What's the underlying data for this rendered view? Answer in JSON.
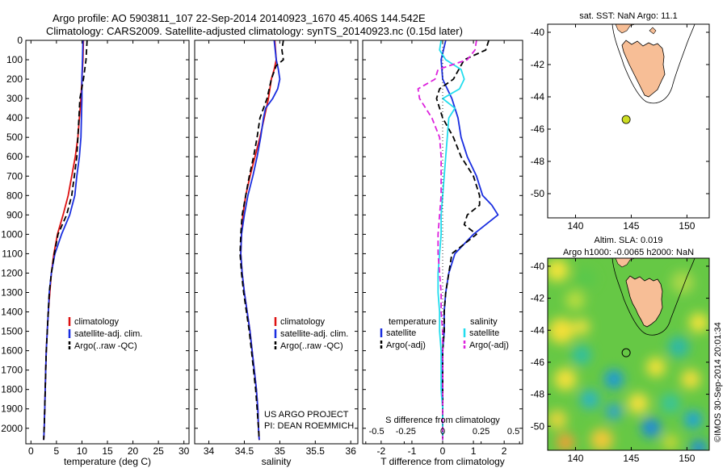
{
  "header": {
    "title_line1": "Argo profile: AO 5903811_107 22-Sep-2014 20140923_1670 45.406S 144.542E",
    "title_line2": "Climatology: CARS2009. Satellite-adjusted climatology: synTS_20140923.nc (0.15d later)"
  },
  "colors": {
    "climatology": "#dd1111",
    "satellite": "#1a2ee0",
    "argo": "#000000",
    "sal_satellite": "#22ddee",
    "sal_argo": "#dd22dd",
    "land": "#f7be96",
    "float_marker": "#ccdd22"
  },
  "chart_data": [
    {
      "type": "line",
      "id": "temperature",
      "xlabel": "temperature (deg C)",
      "ylim": [
        2080,
        0
      ],
      "xlim": [
        -1,
        31
      ],
      "xticks": [
        0,
        5,
        10,
        15,
        20,
        25,
        30
      ],
      "yticks": [
        0,
        100,
        200,
        300,
        400,
        500,
        600,
        700,
        800,
        900,
        1000,
        1100,
        1200,
        1300,
        1400,
        1500,
        1600,
        1700,
        1800,
        1900,
        2000
      ],
      "legend": [
        "climatology",
        "satellite-adj. clim.",
        "Argo(..raw -QC)"
      ],
      "legend_position": "lower-center",
      "series": [
        {
          "name": "climatology",
          "color": "#dd1111",
          "style": "solid",
          "depth": [
            0,
            100,
            200,
            300,
            400,
            500,
            600,
            700,
            800,
            900,
            1000,
            1100,
            1200,
            1300,
            1400,
            1500,
            1600,
            1700,
            1800,
            1900,
            2000,
            2060
          ],
          "x": [
            10.3,
            10.2,
            10.0,
            9.8,
            9.5,
            9.2,
            8.7,
            8.0,
            7.3,
            6.3,
            5.2,
            4.5,
            4.0,
            3.7,
            3.4,
            3.2,
            3.0,
            2.9,
            2.8,
            2.7,
            2.6,
            2.5
          ]
        },
        {
          "name": "satellite-adj. clim.",
          "color": "#1a2ee0",
          "style": "solid",
          "depth": [
            0,
            100,
            200,
            300,
            400,
            500,
            600,
            700,
            800,
            900,
            1000,
            1100,
            1200,
            1300,
            1400,
            1500,
            1600,
            1700,
            1800,
            1900,
            2000,
            2060
          ],
          "x": [
            10.2,
            10.1,
            10.0,
            10.0,
            9.9,
            9.8,
            9.5,
            9.0,
            8.6,
            7.6,
            6.0,
            4.7,
            4.0,
            3.6,
            3.4,
            3.2,
            3.0,
            2.9,
            2.8,
            2.7,
            2.6,
            2.5
          ]
        },
        {
          "name": "Argo(..raw -QC)",
          "color": "#000000",
          "style": "dashed",
          "depth": [
            0,
            100,
            200,
            300,
            400,
            500,
            600,
            700,
            800,
            900,
            1000,
            1100,
            1200,
            1300,
            1400,
            1500,
            1600,
            1700,
            1800,
            1900,
            2000,
            2060
          ],
          "x": [
            11.0,
            10.8,
            10.3,
            9.6,
            9.4,
            9.2,
            9.0,
            8.5,
            8.0,
            7.0,
            5.3,
            4.6,
            4.0,
            3.6,
            3.4,
            3.2,
            3.0,
            2.9,
            2.8,
            2.7,
            2.6,
            2.5
          ]
        }
      ]
    },
    {
      "type": "line",
      "id": "salinity",
      "xlabel": "salinity",
      "ylim": [
        2080,
        0
      ],
      "xlim": [
        33.8,
        36.1
      ],
      "xticks": [
        34,
        34.5,
        35,
        35.5,
        36
      ],
      "legend": [
        "climatology",
        "satellite-adj. clim.",
        "Argo(..raw -QC)"
      ],
      "legend_position": "lower-center",
      "annotation": [
        "US ARGO PROJECT",
        "PI: DEAN ROEMMICH"
      ],
      "series": [
        {
          "name": "climatology",
          "color": "#dd1111",
          "style": "solid",
          "depth": [
            0,
            100,
            150,
            200,
            300,
            400,
            500,
            600,
            700,
            800,
            900,
            1000,
            1100,
            1200,
            1300,
            1400,
            1500,
            1600,
            1700,
            1800,
            1900,
            2000,
            2060
          ],
          "x": [
            34.93,
            34.95,
            34.92,
            34.88,
            34.84,
            34.78,
            34.72,
            34.65,
            34.58,
            34.52,
            34.48,
            34.46,
            34.45,
            34.47,
            34.5,
            34.54,
            34.58,
            34.61,
            34.64,
            34.67,
            34.69,
            34.7,
            34.71
          ]
        },
        {
          "name": "satellite-adj. clim.",
          "color": "#1a2ee0",
          "style": "solid",
          "depth": [
            0,
            100,
            150,
            200,
            250,
            300,
            350,
            400,
            500,
            600,
            700,
            800,
            900,
            1000,
            1100,
            1200,
            1300,
            1400,
            1500,
            1600,
            1700,
            1800,
            1900,
            2000,
            2060
          ],
          "x": [
            34.92,
            34.95,
            34.98,
            35.0,
            34.97,
            34.9,
            34.8,
            34.77,
            34.73,
            34.68,
            34.62,
            34.55,
            34.5,
            34.46,
            34.45,
            34.47,
            34.5,
            34.54,
            34.58,
            34.61,
            34.64,
            34.67,
            34.69,
            34.7,
            34.71
          ]
        },
        {
          "name": "Argo(..raw -QC)",
          "color": "#000000",
          "style": "dashed",
          "depth": [
            0,
            50,
            100,
            130,
            200,
            300,
            400,
            500,
            600,
            700,
            800,
            900,
            1000,
            1100,
            1200,
            1300,
            1400,
            1500,
            1600,
            1700,
            1800,
            1900,
            2000,
            2060
          ],
          "x": [
            35.05,
            35.03,
            35.05,
            34.95,
            34.88,
            34.82,
            34.72,
            34.68,
            34.63,
            34.57,
            34.52,
            34.47,
            34.45,
            34.44,
            34.46,
            34.49,
            34.53,
            34.57,
            34.6,
            34.63,
            34.66,
            34.68,
            34.7,
            34.71
          ]
        }
      ]
    },
    {
      "type": "line",
      "id": "differences",
      "xlabel": "T difference from climatology",
      "xlabel_top": "S difference from climatology",
      "ylim": [
        2080,
        0
      ],
      "xlim": [
        -2.6,
        2.6
      ],
      "xticks": [
        -2,
        -1,
        0,
        1,
        2
      ],
      "xticks_top_pos": [
        -2.5,
        -1.25,
        0,
        1.25,
        2.5
      ],
      "xticks_top_label": [
        "-0.5",
        "-0.25",
        "0",
        "0.25",
        "0.5"
      ],
      "legend_temperature_title": "temperature",
      "legend_salinity_title": "salinity",
      "legend_temperature": [
        "satellite",
        "Argo(-adj)"
      ],
      "legend_salinity": [
        "satellite",
        "Argo(-adj)"
      ],
      "zero_line": true,
      "series": [
        {
          "name": "T satellite",
          "color": "#1a2ee0",
          "style": "solid",
          "depth": [
            0,
            100,
            200,
            300,
            400,
            500,
            600,
            700,
            800,
            850,
            900,
            1000,
            1100,
            1200,
            1300,
            1400,
            1500,
            1600,
            1700,
            1800,
            1900,
            2000,
            2060
          ],
          "x": [
            0.1,
            -0.05,
            0.0,
            0.3,
            0.5,
            0.6,
            0.8,
            1.1,
            1.3,
            1.6,
            1.8,
            1.0,
            0.4,
            0.2,
            0.1,
            0.05,
            0.05,
            0.0,
            0.0,
            0.0,
            0.0,
            0.0,
            0.0
          ]
        },
        {
          "name": "T Argo(-adj)",
          "color": "#000000",
          "style": "dashed",
          "depth": [
            0,
            50,
            100,
            200,
            250,
            300,
            400,
            500,
            600,
            700,
            800,
            850,
            900,
            950,
            1000,
            1100,
            1200,
            1300,
            1400,
            1500,
            1600,
            1700,
            1800,
            1900,
            2000,
            2060
          ],
          "x": [
            1.5,
            1.4,
            0.7,
            0.35,
            -0.1,
            -0.2,
            0.0,
            0.35,
            0.6,
            1.0,
            1.2,
            1.2,
            0.8,
            0.7,
            1.1,
            0.3,
            0.2,
            0.1,
            0.05,
            0.05,
            0.0,
            0.0,
            0.0,
            0.0,
            0.0,
            0.0
          ]
        },
        {
          "name": "S satellite",
          "color": "#22ddee",
          "style": "solid",
          "depth": [
            0,
            50,
            100,
            150,
            200,
            250,
            300,
            350,
            400,
            500,
            600,
            700,
            800,
            900,
            1000,
            1100,
            1200,
            1300,
            1400,
            1500,
            1600,
            1700,
            1800,
            1900,
            2000,
            2060
          ],
          "x": [
            -0.05,
            -0.1,
            0.1,
            0.6,
            0.7,
            0.55,
            0.0,
            0.4,
            0.2,
            0.15,
            0.1,
            0.05,
            0.0,
            -0.05,
            -0.05,
            -0.1,
            -0.15,
            -0.15,
            -0.1,
            -0.1,
            -0.05,
            -0.05,
            -0.05,
            0.0,
            0.0,
            0.0
          ]
        },
        {
          "name": "S Argo(-adj)",
          "color": "#dd22dd",
          "style": "dashed",
          "depth": [
            0,
            50,
            100,
            150,
            200,
            250,
            300,
            400,
            500,
            600,
            700,
            800,
            900,
            1000,
            1100,
            1200,
            1300,
            1400,
            1500,
            1600,
            1700,
            1800,
            1900,
            2000,
            2060
          ],
          "x": [
            1.1,
            1.05,
            0.8,
            -0.15,
            -0.25,
            -0.8,
            -0.75,
            -0.35,
            -0.1,
            -0.05,
            -0.05,
            -0.05,
            -0.1,
            -0.15,
            -0.15,
            -0.1,
            -0.05,
            -0.05,
            0.0,
            0.0,
            0.0,
            0.0,
            0.0,
            0.0,
            0.0
          ]
        }
      ]
    },
    {
      "type": "scatter",
      "id": "sst_map",
      "title": "sat. SST: NaN Argo: 11.1",
      "xlim": [
        137.5,
        152
      ],
      "ylim": [
        -51.5,
        -39.5
      ],
      "xticks": [
        140,
        145,
        150
      ],
      "yticks": [
        -40,
        -42,
        -44,
        -46,
        -48,
        -50
      ],
      "ytick_labels": [
        "-40",
        "-42",
        "-44",
        "-46",
        "-48",
        "-50"
      ],
      "float_position": [
        144.542,
        -45.406
      ]
    },
    {
      "type": "heatmap",
      "id": "sla_map",
      "title_line1": "Altim. SLA: 0.019",
      "title_line2": "Argo h1000: -0.0065 h2000: NaN",
      "xlim": [
        137.5,
        152
      ],
      "ylim": [
        -51.5,
        -39.5
      ],
      "xticks": [
        140,
        145,
        150
      ],
      "yticks": [
        -40,
        -42,
        -44,
        -46,
        -48,
        -50
      ],
      "ytick_labels": [
        "-40",
        "-42",
        "-44",
        "-46",
        "-48",
        "-50"
      ],
      "float_position": [
        144.542,
        -45.406
      ],
      "side_label": "©IMOS 30-Sep-2014 20:01:34"
    }
  ]
}
